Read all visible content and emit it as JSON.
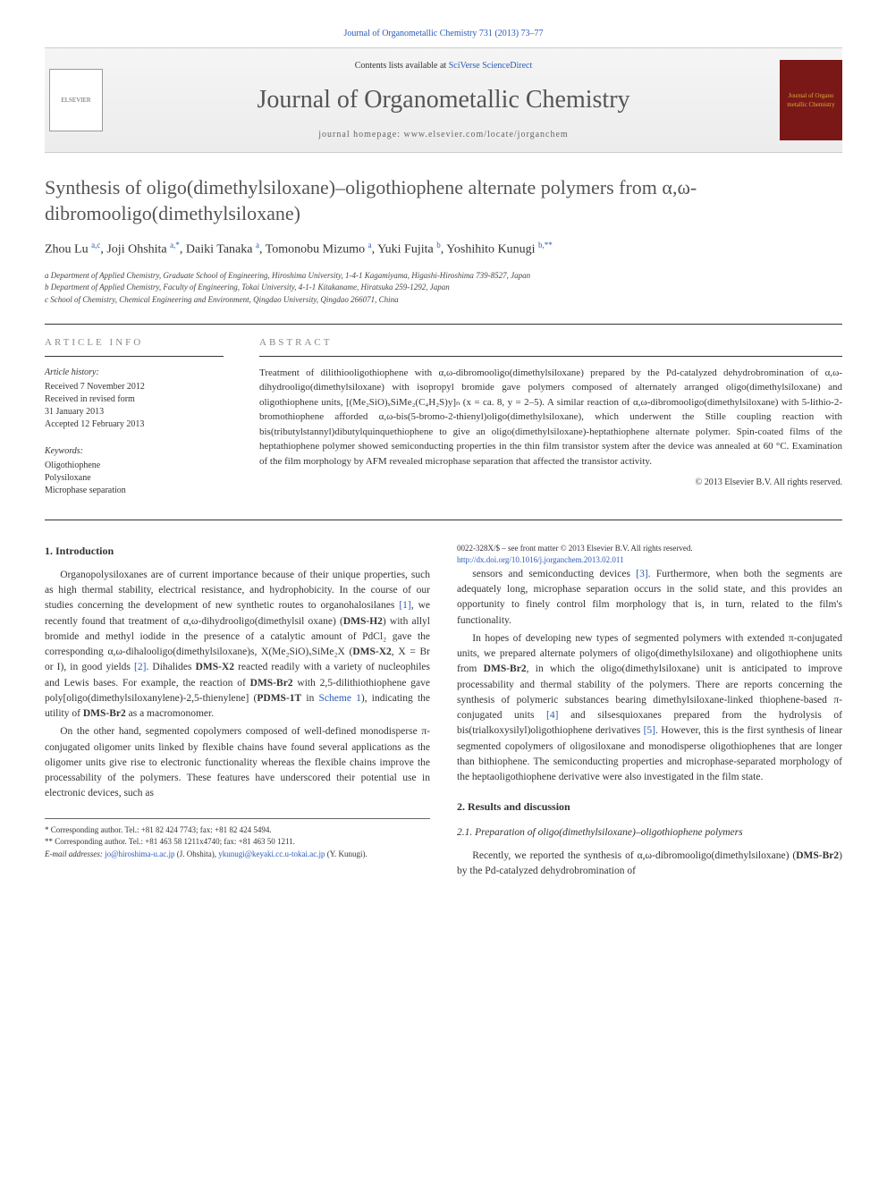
{
  "header": {
    "citation": "Journal of Organometallic Chemistry 731 (2013) 73–77",
    "contents_prefix": "Contents lists available at ",
    "contents_link": "SciVerse ScienceDirect",
    "journal_name": "Journal of Organometallic Chemistry",
    "homepage": "journal homepage: www.elsevier.com/locate/jorganchem",
    "publisher_logo": "ELSEVIER",
    "cover_text": "Journal of Organo metallic Chemistry"
  },
  "title": "Synthesis of oligo(dimethylsiloxane)–oligothiophene alternate polymers from α,ω-dibromooligo(dimethylsiloxane)",
  "authors_html": "Zhou Lu <sup>a,c</sup>, Joji Ohshita <sup>a,*</sup>, Daiki Tanaka <sup>a</sup>, Tomonobu Mizumo <sup>a</sup>, Yuki Fujita <sup>b</sup>, Yoshihito Kunugi <sup>b,**</sup>",
  "affiliations": [
    "a Department of Applied Chemistry, Graduate School of Engineering, Hiroshima University, 1-4-1 Kagamiyama, Higashi-Hiroshima 739-8527, Japan",
    "b Department of Applied Chemistry, Faculty of Engineering, Tokai University, 4-1-1 Kitakaname, Hiratsuka 259-1292, Japan",
    "c School of Chemistry, Chemical Engineering and Environment, Qingdao University, Qingdao 266071, China"
  ],
  "article_info": {
    "heading": "ARTICLE INFO",
    "history_label": "Article history:",
    "history": [
      "Received 7 November 2012",
      "Received in revised form",
      "31 January 2013",
      "Accepted 12 February 2013"
    ],
    "keywords_label": "Keywords:",
    "keywords": [
      "Oligothiophene",
      "Polysiloxane",
      "Microphase separation"
    ]
  },
  "abstract": {
    "heading": "ABSTRACT",
    "text": "Treatment of dilithiooligothiophene with α,ω-dibromooligo(dimethylsiloxane) prepared by the Pd-catalyzed dehydrobromination of α,ω-dihydrooligo(dimethylsiloxane) with isopropyl bromide gave polymers composed of alternately arranged oligo(dimethylsiloxane) and oligothiophene units, [(Me₂SiO)ₓSiMe₂(C₄H₂S)y]ₙ (x = ca. 8, y = 2–5). A similar reaction of α,ω-dibromooligo(dimethylsiloxane) with 5-lithio-2-bromothiophene afforded α,ω-bis(5-bromo-2-thienyl)oligo(dimethylsiloxane), which underwent the Stille coupling reaction with bis(tributylstannyl)dibutylquinquethiophene to give an oligo(dimethylsiloxane)-heptathiophene alternate polymer. Spin-coated films of the heptathiophene polymer showed semiconducting properties in the thin film transistor system after the device was annealed at 60 °C. Examination of the film morphology by AFM revealed microphase separation that affected the transistor activity.",
    "copyright": "© 2013 Elsevier B.V. All rights reserved."
  },
  "body": {
    "section1_heading": "1.  Introduction",
    "para1": "Organopolysiloxanes are of current importance because of their unique properties, such as high thermal stability, electrical resistance, and hydrophobicity. In the course of our studies concerning the development of new synthetic routes to organohalosilanes [1], we recently found that treatment of α,ω-dihydrooligo(dimethylsil oxane) (DMS-H2) with allyl bromide and methyl iodide in the presence of a catalytic amount of PdCl₂ gave the corresponding α,ω-dihalooligo(dimethylsiloxane)s, X(Me₂SiO)ₓSiMe₂X (DMS-X2, X = Br or I), in good yields [2]. Dihalides DMS-X2 reacted readily with a variety of nucleophiles and Lewis bases. For example, the reaction of DMS-Br2 with 2,5-dilithiothiophene gave poly[oligo(dimethylsiloxanylene)-2,5-thienylene] (PDMS-1T in Scheme 1), indicating the utility of DMS-Br2 as a macromonomer.",
    "para2": "On the other hand, segmented copolymers composed of well-defined monodisperse π-conjugated oligomer units linked by flexible chains have found several applications as the oligomer units give rise to electronic functionality whereas the flexible chains improve the processability of the polymers. These features have underscored their potential use in electronic devices, such as",
    "para3": "sensors and semiconducting devices [3]. Furthermore, when both the segments are adequately long, microphase separation occurs in the solid state, and this provides an opportunity to finely control film morphology that is, in turn, related to the film's functionality.",
    "para4": "In hopes of developing new types of segmented polymers with extended π-conjugated units, we prepared alternate polymers of oligo(dimethylsiloxane) and oligothiophene units from DMS-Br2, in which the oligo(dimethylsiloxane) unit is anticipated to improve processability and thermal stability of the polymers. There are reports concerning the synthesis of polymeric substances bearing dimethylsiloxane-linked thiophene-based π-conjugated units [4] and silsesquioxanes prepared from the hydrolysis of bis(trialkoxysilyl)oligothiophene derivatives [5]. However, this is the first synthesis of linear segmented copolymers of oligosiloxane and monodisperse oligothiophenes that are longer than bithiophene. The semiconducting properties and microphase-separated morphology of the heptaoligothiophene derivative were also investigated in the film state.",
    "section2_heading": "2.  Results and discussion",
    "sub21_heading": "2.1. Preparation of oligo(dimethylsiloxane)–oligothiophene polymers",
    "para5": "Recently, we reported the synthesis of α,ω-dibromooligo(dimethylsiloxane) (DMS-Br2) by the Pd-catalyzed dehydrobromination of"
  },
  "footnotes": {
    "corr1": "* Corresponding author. Tel.: +81 82 424 7743; fax: +81 82 424 5494.",
    "corr2": "** Corresponding author. Tel.: +81 463 58 1211x4740; fax: +81 463 50 1211.",
    "email_label": "E-mail addresses: ",
    "email1": "jo@hiroshima-u.ac.jp",
    "email1_name": " (J. Ohshita), ",
    "email2": "ykunugi@keyaki.cc.u-tokai.ac.jp",
    "email2_name": " (Y. Kunugi)."
  },
  "footer": {
    "issn": "0022-328X/$ – see front matter © 2013 Elsevier B.V. All rights reserved.",
    "doi": "http://dx.doi.org/10.1016/j.jorganchem.2013.02.011"
  },
  "colors": {
    "link": "#2a5bb8",
    "heading_gray": "#888888",
    "text": "#333333",
    "cover_bg": "#7a1818",
    "cover_text": "#d4af37"
  },
  "typography": {
    "title_fontsize": 22,
    "journal_fontsize": 28,
    "body_fontsize": 11.5,
    "abstract_fontsize": 11,
    "info_fontsize": 10,
    "footnote_fontsize": 9
  }
}
